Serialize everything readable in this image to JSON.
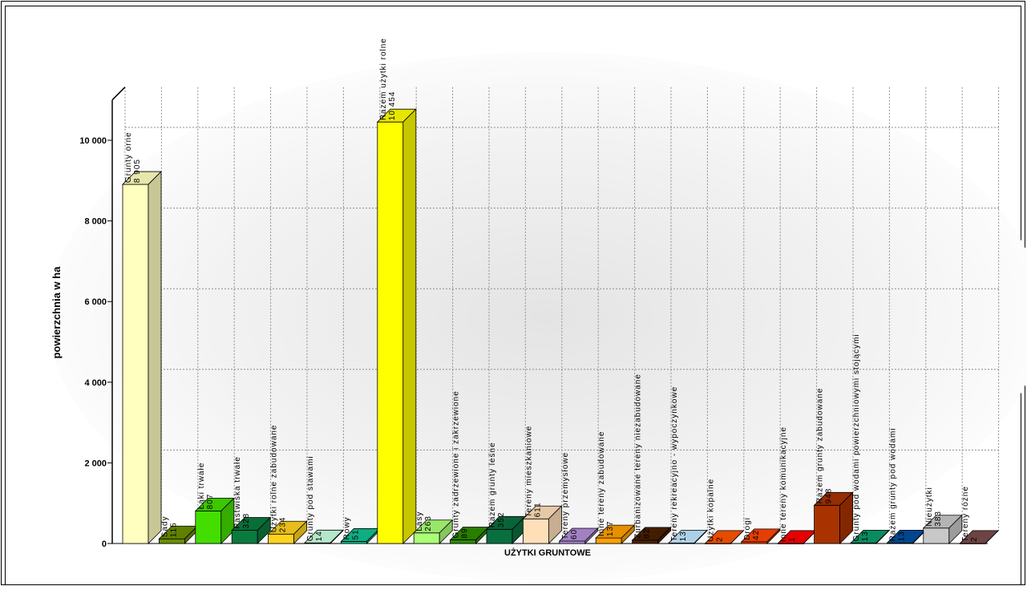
{
  "chart_data": {
    "type": "bar",
    "title": "",
    "xlabel": "UŻYTKI GRUNTOWE",
    "ylabel": "powierzchnia w ha",
    "ylim": [
      0,
      11000
    ],
    "y_ticks": [
      0,
      2000,
      4000,
      6000,
      8000,
      10000
    ],
    "y_tick_labels": [
      "0",
      "2 000",
      "4 000",
      "6 000",
      "8 000",
      "10 000"
    ],
    "grid": true,
    "categories": [
      "Grunty orne",
      "Sady",
      "Łąki trwałe",
      "Pastwiska trwałe",
      "Użytki rolne zabudowane",
      "Grunty pod stawami",
      "Rowy",
      "Razem użytki rolne",
      "Lasy",
      "Grunty zadrzewione i zakrzewione",
      "Razem grunty leśne",
      "Tereny mieszkaniowe",
      "Tereny przemysłowe",
      "Inne tereny zabudowane",
      "Zurbanizowane tereny niezabudowane",
      "Tereny rekreacyjno - wypoczynkowe",
      "Użytki kopalne",
      "Drogi",
      "Inne tereny komunikacyjne",
      "Razem grunty zabudowane",
      "Grunty pod wodami powierzchniowymi stojącymi",
      "Razem grunty pod wodami",
      "Nieużytki",
      "Tereny różne"
    ],
    "values": [
      8905,
      115,
      807,
      328,
      234,
      14,
      51,
      10454,
      263,
      89,
      352,
      611,
      60,
      137,
      82,
      13,
      2,
      42,
      1,
      948,
      13,
      13,
      383,
      2
    ],
    "value_labels": [
      "8 905",
      "115",
      "807",
      "328",
      "234",
      "14",
      "51",
      "10 454",
      "263",
      "89",
      "352",
      "611",
      "60",
      "137",
      "82",
      "13",
      "2",
      "42",
      "1",
      "948",
      "13",
      "13",
      "383",
      "2"
    ],
    "colors": [
      "#FFFFC0",
      "#6B8E00",
      "#44DD00",
      "#0B7A3E",
      "#FFD21E",
      "#C8FFE0",
      "#10C090",
      "#FFFF00",
      "#AAFF77",
      "#2E8B00",
      "#0A6F3F",
      "#FFDFB8",
      "#B38FD8",
      "#FF9F00",
      "#4A2000",
      "#BFE8FF",
      "#FF5400",
      "#FF4500",
      "#FF0000",
      "#A83200",
      "#0A9A6A",
      "#004FA0",
      "#C8C8C8",
      "#7A4A4A"
    ]
  }
}
